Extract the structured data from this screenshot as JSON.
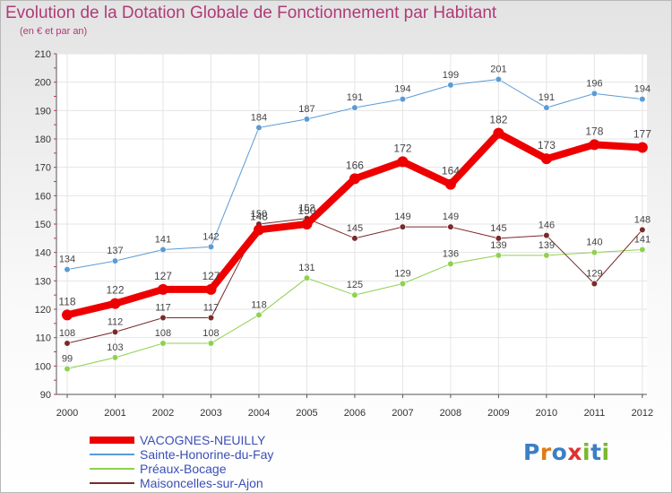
{
  "title": "Evolution de la Dotation Globale de Fonctionnement par Habitant",
  "subtitle": "(en € et par an)",
  "logo": "Proxiti",
  "colors": {
    "title": "#b03a78",
    "vacognes": "#ee0000",
    "sainte": "#5b9bd5",
    "preaux": "#8fd14f",
    "maisoncelles": "#7a2a2a"
  },
  "chart_data": {
    "type": "line",
    "title": "Evolution de la Dotation Globale de Fonctionnement par Habitant",
    "subtitle": "(en € et par an)",
    "xlabel": "",
    "ylabel": "",
    "ylim": [
      90,
      210
    ],
    "yticks": [
      90,
      100,
      110,
      120,
      130,
      140,
      150,
      160,
      170,
      180,
      190,
      200,
      210
    ],
    "grid": true,
    "legend_position": "bottom-left",
    "x": [
      "2000",
      "2001",
      "2002",
      "2003",
      "2004",
      "2005",
      "2006",
      "2007",
      "2008",
      "2009",
      "2010",
      "2011",
      "2012"
    ],
    "series": [
      {
        "name": "VACOGNES-NEUILLY",
        "color": "#ee0000",
        "width": 8,
        "values": [
          118,
          122,
          127,
          127,
          148,
          150,
          166,
          172,
          164,
          182,
          173,
          178,
          177
        ]
      },
      {
        "name": "Sainte-Honorine-du-Fay",
        "color": "#5b9bd5",
        "width": 1,
        "values": [
          134,
          137,
          141,
          142,
          184,
          187,
          191,
          194,
          199,
          201,
          191,
          196,
          194
        ]
      },
      {
        "name": "Préaux-Bocage",
        "color": "#8fd14f",
        "width": 1,
        "values": [
          99,
          103,
          108,
          108,
          118,
          131,
          125,
          129,
          136,
          139,
          139,
          140,
          141
        ]
      },
      {
        "name": "Maisoncelles-sur-Ajon",
        "color": "#7a2a2a",
        "width": 1,
        "values": [
          108,
          112,
          117,
          117,
          150,
          152,
          145,
          149,
          149,
          145,
          146,
          129,
          148
        ]
      }
    ]
  }
}
